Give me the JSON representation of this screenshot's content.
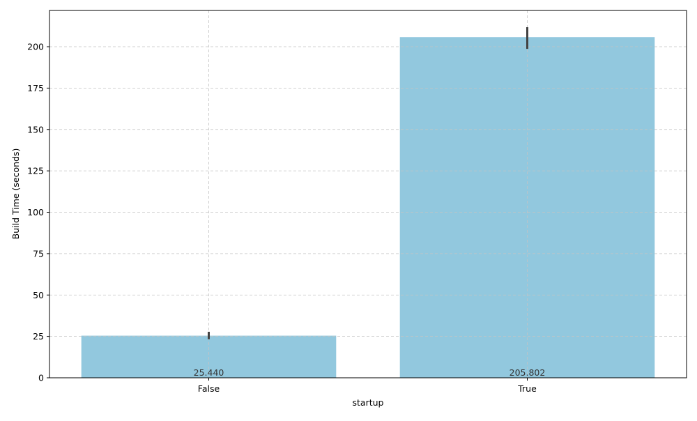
{
  "chart_data": {
    "type": "bar",
    "title": "",
    "xlabel": "startup",
    "ylabel": "Build Time (seconds)",
    "categories": [
      "False",
      "True"
    ],
    "values": [
      25.44,
      205.802
    ],
    "value_labels": [
      "25.440",
      "205.802"
    ],
    "error_bars": [
      [
        23.3,
        27.8
      ],
      [
        198.7,
        211.8
      ]
    ],
    "ylim": [
      0,
      221.9
    ],
    "yticks": [
      0,
      25,
      50,
      75,
      100,
      125,
      150,
      175,
      200
    ],
    "grid": true,
    "grid_style": "dashed",
    "colors": {
      "bar": "#92c8de",
      "error_bar": "#424242",
      "grid": "#c4c4c4",
      "value_label": "#333333"
    }
  }
}
